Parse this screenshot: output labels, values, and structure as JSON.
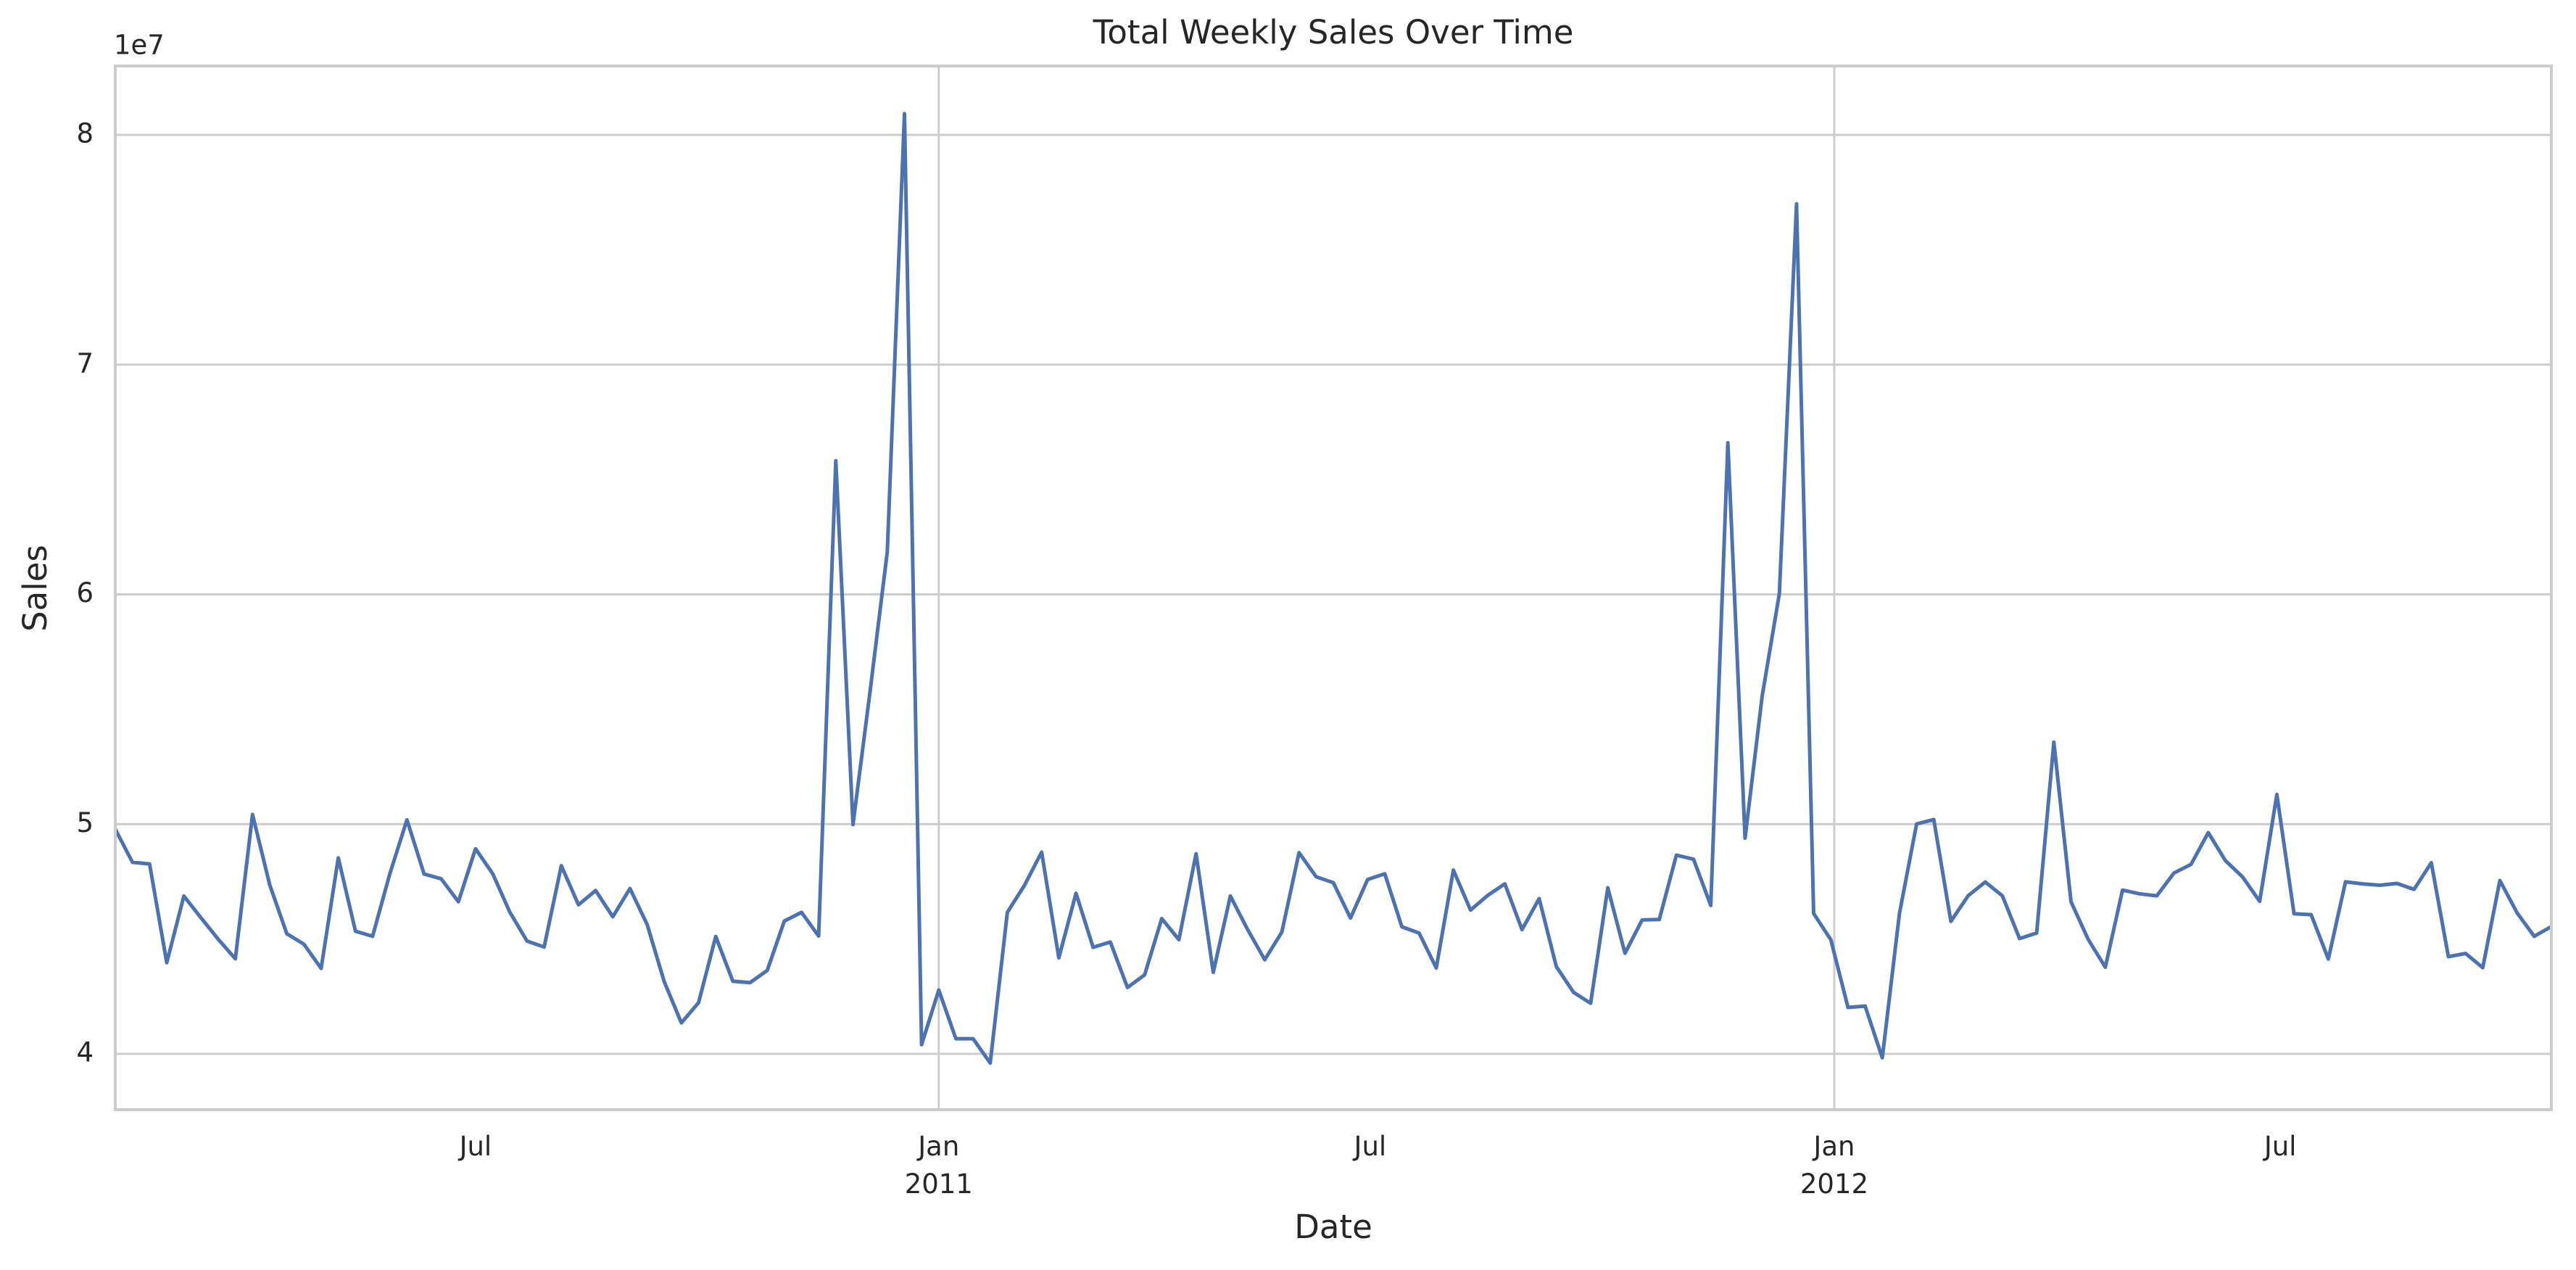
{
  "chart_data": {
    "type": "line",
    "title": "Total Weekly Sales Over Time",
    "x_label": "Date",
    "y_label": "Sales",
    "y_offset_label": "1e7",
    "grid": true,
    "xlim": [
      0,
      142
    ],
    "xticks": [
      {
        "value": 48,
        "label": "Jan\n2011"
      },
      {
        "value": 100.2,
        "label": "Jan\n2012"
      }
    ],
    "xticks_minor": [
      {
        "value": 21,
        "label": "Jul"
      },
      {
        "value": 73.15,
        "label": "Jul"
      },
      {
        "value": 126.2,
        "label": "Jul"
      }
    ],
    "ylim": [
      3.757,
      8.3
    ],
    "yticks": [
      4,
      5,
      6,
      7,
      8
    ],
    "series": [
      {
        "name": "Sales",
        "color": "#4c72b0",
        "values": [
          4.978,
          4.834,
          4.827,
          4.397,
          4.687,
          4.592,
          4.499,
          4.414,
          5.042,
          4.736,
          4.523,
          4.477,
          4.372,
          4.853,
          4.534,
          4.512,
          4.783,
          5.019,
          4.783,
          4.762,
          4.662,
          4.893,
          4.784,
          4.617,
          4.491,
          4.465,
          4.819,
          4.649,
          4.711,
          4.597,
          4.72,
          4.564,
          4.314,
          4.135,
          4.223,
          4.511,
          4.316,
          4.31,
          4.363,
          4.578,
          4.616,
          4.513,
          6.582,
          4.998,
          5.579,
          6.185,
          8.093,
          4.04,
          4.278,
          4.066,
          4.066,
          3.96,
          4.616,
          4.734,
          4.878,
          4.418,
          4.699,
          4.464,
          4.487,
          4.289,
          4.344,
          4.589,
          4.497,
          4.871,
          4.355,
          4.687,
          4.542,
          4.41,
          4.53,
          4.876,
          4.771,
          4.745,
          4.591,
          4.759,
          4.784,
          4.553,
          4.526,
          4.374,
          4.8,
          4.626,
          4.69,
          4.74,
          4.541,
          4.676,
          4.38,
          4.268,
          4.22,
          4.723,
          4.438,
          4.583,
          4.585,
          4.865,
          4.847,
          4.646,
          6.66,
          4.939,
          5.557,
          6.003,
          7.7,
          4.611,
          4.497,
          4.202,
          4.208,
          3.983,
          4.61,
          5.001,
          5.02,
          4.577,
          4.688,
          4.748,
          4.688,
          4.502,
          4.526,
          5.357,
          4.662,
          4.499,
          4.377,
          4.713,
          4.697,
          4.688,
          4.787,
          4.825,
          4.963,
          4.841,
          4.77,
          4.664,
          5.129,
          4.61,
          4.606,
          4.413,
          4.749,
          4.74,
          4.734,
          4.742,
          4.716,
          4.832,
          4.423,
          4.437,
          4.375,
          4.755,
          4.614,
          4.512,
          4.554
        ]
      }
    ]
  }
}
